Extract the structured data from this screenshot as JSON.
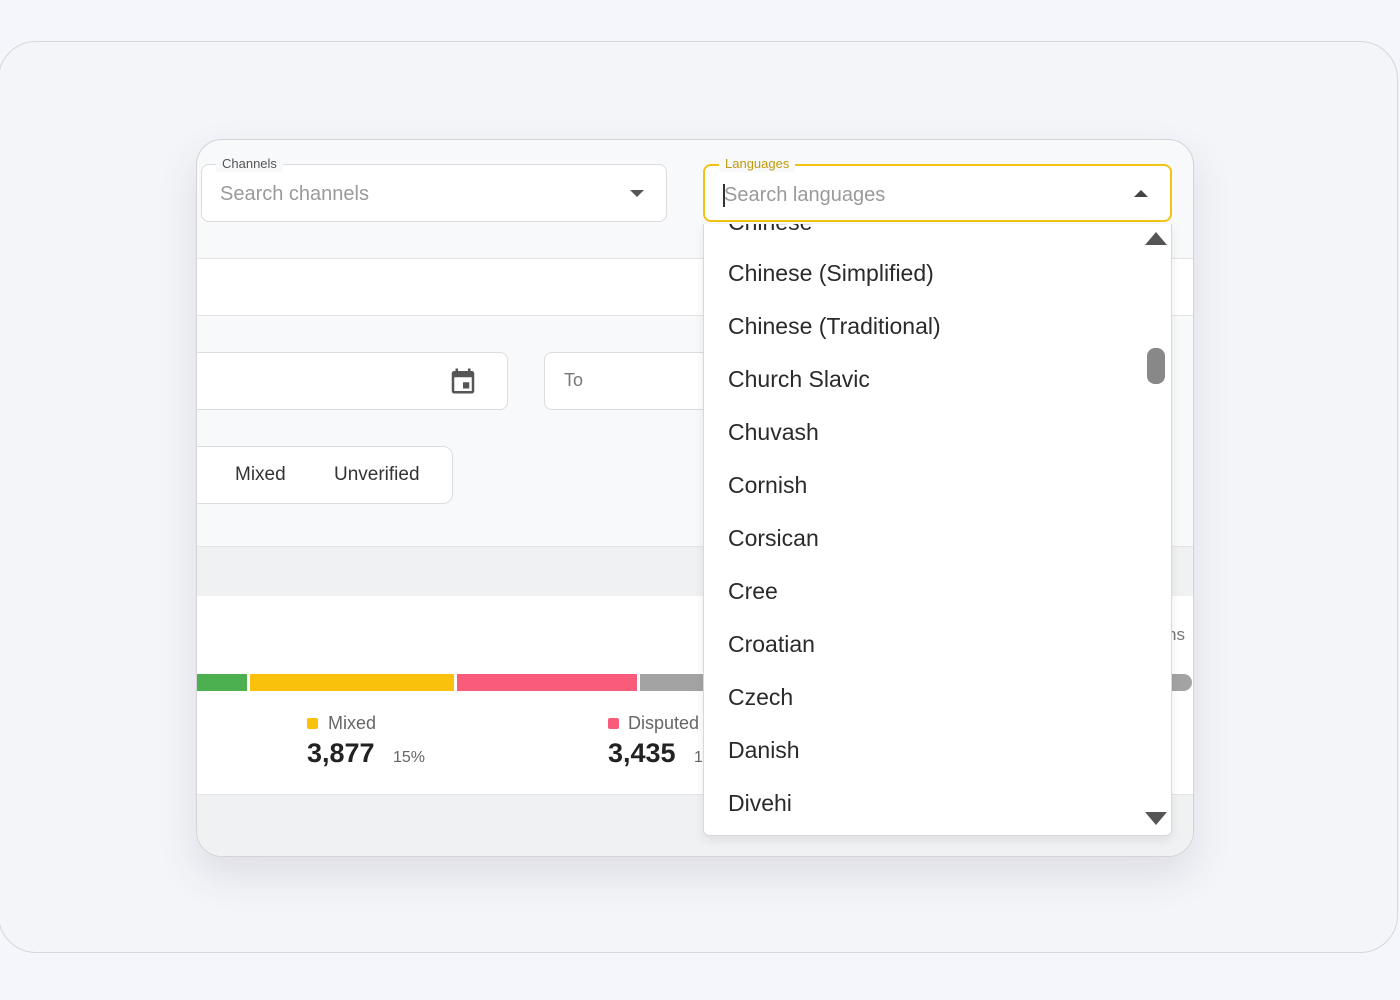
{
  "filters": {
    "channels": {
      "label": "Channels",
      "placeholder": "Search channels"
    },
    "languages": {
      "label": "Languages",
      "placeholder": "Search languages"
    },
    "date_to": {
      "label": "To"
    }
  },
  "verification_toggle": {
    "options": [
      "Mixed",
      "Unverified"
    ]
  },
  "stats": {
    "bar_segments": [
      {
        "name": "green",
        "color": "#4caf50"
      },
      {
        "name": "mixed",
        "color": "#f9c10b"
      },
      {
        "name": "disputed",
        "color": "#f95c7a"
      },
      {
        "name": "gray",
        "color": "#a3a3a3"
      }
    ],
    "mixed": {
      "label": "Mixed",
      "value": "3,877",
      "percent": "15%",
      "color": "#f9c10b"
    },
    "disputed": {
      "label": "Disputed",
      "value": "3,435",
      "percent": "1",
      "color": "#f95c7a"
    },
    "partial_label": "ns"
  },
  "language_dropdown": {
    "options": [
      "Chinese",
      "Chinese (Simplified)",
      "Chinese (Traditional)",
      "Church Slavic",
      "Chuvash",
      "Cornish",
      "Corsican",
      "Cree",
      "Croatian",
      "Czech",
      "Danish",
      "Divehi"
    ]
  },
  "colors": {
    "focus_border": "#f2c314",
    "focus_label": "#c29a0a",
    "text": "#2a2a2a",
    "muted": "#9a9a9a"
  }
}
